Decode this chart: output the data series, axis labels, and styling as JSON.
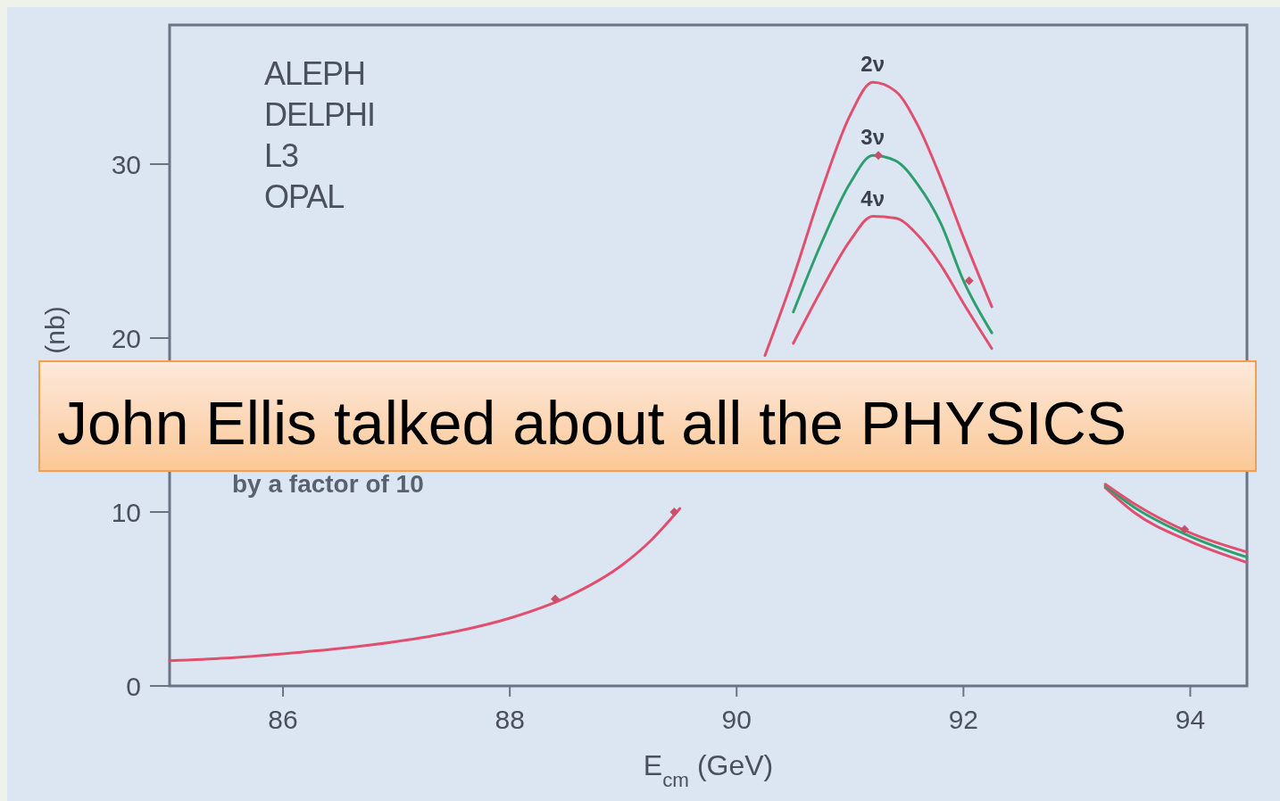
{
  "chart_data": {
    "type": "line",
    "xlabel": "E$_{cm}$ (GeV)",
    "ylabel": "(nb)",
    "xlim": [
      85,
      94.5
    ],
    "ylim": [
      0,
      38
    ],
    "xticks": [
      86,
      88,
      90,
      92,
      94
    ],
    "yticks": [
      0,
      10,
      20,
      30
    ],
    "grid": false,
    "marker": "none",
    "line_style": "solid",
    "x": [
      85,
      85.5,
      86,
      86.5,
      87,
      87.5,
      88,
      88.5,
      89,
      89.25,
      89.5,
      89.75,
      90,
      90.25,
      90.5,
      90.75,
      91,
      91.2,
      91.4,
      91.6,
      91.8,
      92,
      92.25,
      92.5,
      92.75,
      93,
      93.25,
      93.5,
      94,
      94.5
    ],
    "series": [
      {
        "name": "2ν",
        "color": "#e0506e",
        "values": [
          1.45,
          1.6,
          1.85,
          2.15,
          2.55,
          3.1,
          3.9,
          5.1,
          7.0,
          8.4,
          10.2,
          null,
          null,
          19.0,
          23.5,
          28.5,
          32.8,
          34.7,
          34.2,
          32.2,
          29.2,
          25.8,
          21.8,
          null,
          null,
          null,
          11.4,
          10.0,
          8.3,
          7.1
        ]
      },
      {
        "name": "3ν",
        "color": "#2e9e6e",
        "values": [
          null,
          null,
          null,
          null,
          null,
          null,
          null,
          null,
          null,
          null,
          null,
          null,
          null,
          null,
          21.5,
          25.5,
          28.9,
          30.5,
          30.2,
          28.8,
          26.6,
          23.3,
          20.3,
          null,
          null,
          null,
          11.5,
          10.3,
          8.6,
          7.4
        ]
      },
      {
        "name": "4ν",
        "color": "#e0506e",
        "values": [
          null,
          null,
          null,
          null,
          null,
          null,
          null,
          null,
          null,
          null,
          null,
          null,
          null,
          null,
          19.7,
          22.8,
          25.6,
          27.0,
          26.9,
          25.9,
          24.2,
          22.0,
          19.4,
          null,
          null,
          null,
          11.6,
          10.5,
          8.8,
          7.7
        ]
      },
      {
        "type": "scatter",
        "color": "#c8506a",
        "marker": "diamond",
        "x": [
          88.4,
          89.45,
          91.25,
          92.05,
          93.95
        ],
        "values": [
          5.0,
          10.0,
          30.5,
          23.3,
          9.0
        ]
      }
    ],
    "annotations": [
      "ALEPH",
      "DELPHI",
      "L3",
      "OPAL",
      "by a factor of 10",
      "John Ellis talked about all the PHYSICS"
    ]
  }
}
